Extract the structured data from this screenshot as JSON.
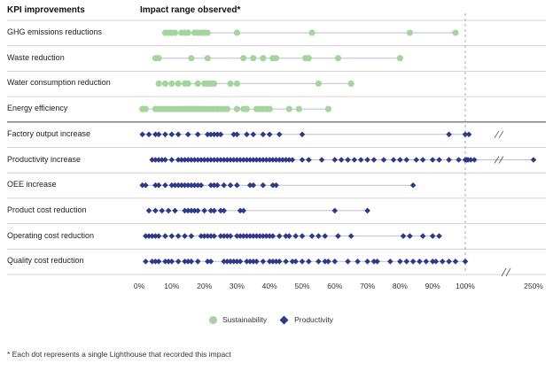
{
  "headers": {
    "kpi": "KPI improvements",
    "impact": "Impact range observed*"
  },
  "footnote": "* Each dot represents a single Lighthouse that recorded this impact",
  "colors": {
    "sustainability": "#a6d49f",
    "productivity": "#2e3a87",
    "line": "#b9bfd6",
    "divider": "#c8c8c8",
    "dashed": "#8c92c4"
  },
  "chart_data": {
    "type": "scatter",
    "title": "Impact range observed*",
    "xlabel": "",
    "ylabel": "",
    "x_ticks": [
      "0%",
      "10%",
      "20%",
      "30%",
      "40%",
      "50%",
      "60%",
      "70%",
      "80%",
      "90%",
      "100%",
      "250%"
    ],
    "xlim": [
      0,
      250
    ],
    "axis_break": "between 100% and 250%",
    "reference_line": 100,
    "legend": [
      "Sustainability",
      "Productivity"
    ],
    "legend_position": "bottom-center",
    "rows": [
      {
        "label": "GHG emissions reductions",
        "series": "Sustainability",
        "values": [
          8,
          9,
          10,
          11,
          13,
          14,
          15,
          17,
          18,
          19,
          20,
          21,
          30,
          53,
          83,
          97
        ]
      },
      {
        "label": "Waste reduction",
        "series": "Sustainability",
        "values": [
          5,
          6,
          16,
          21,
          32,
          35,
          38,
          41,
          42,
          51,
          52,
          61,
          80
        ]
      },
      {
        "label": "Water consumption reduction",
        "series": "Sustainability",
        "values": [
          6,
          8,
          10,
          12,
          14,
          15,
          18,
          20,
          21,
          22,
          23,
          28,
          30,
          55,
          65
        ]
      },
      {
        "label": "Energy efficiency",
        "series": "Sustainability",
        "values": [
          1,
          2,
          5,
          6,
          7,
          8,
          9,
          10,
          11,
          12,
          13,
          14,
          15,
          16,
          17,
          18,
          19,
          20,
          21,
          22,
          23,
          24,
          25,
          26,
          27,
          30,
          32,
          33,
          36,
          37,
          38,
          39,
          40,
          46,
          49,
          58
        ]
      },
      {
        "label": "Factory output increase",
        "series": "Productivity",
        "values": [
          1,
          3,
          5,
          6,
          8,
          10,
          12,
          15,
          18,
          21,
          22,
          23,
          24,
          25,
          29,
          30,
          33,
          35,
          38,
          40,
          43,
          50,
          95,
          100,
          108
        ]
      },
      {
        "label": "Productivity increase",
        "series": "Productivity",
        "values": [
          4,
          5,
          6,
          7,
          8,
          10,
          12,
          13,
          14,
          15,
          16,
          17,
          18,
          19,
          20,
          21,
          22,
          23,
          24,
          25,
          26,
          27,
          28,
          29,
          30,
          31,
          32,
          33,
          34,
          35,
          36,
          37,
          38,
          39,
          40,
          41,
          42,
          43,
          44,
          45,
          46,
          47,
          50,
          52,
          56,
          60,
          62,
          64,
          66,
          68,
          70,
          72,
          75,
          78,
          80,
          82,
          85,
          87,
          90,
          92,
          95,
          98,
          100,
          103,
          106,
          112,
          120,
          250
        ]
      },
      {
        "label": "OEE increase",
        "series": "Productivity",
        "values": [
          1,
          2,
          5,
          6,
          8,
          10,
          11,
          12,
          13,
          14,
          15,
          16,
          17,
          18,
          19,
          22,
          23,
          24,
          26,
          28,
          30,
          34,
          35,
          38,
          41,
          42,
          84
        ]
      },
      {
        "label": "Product cost reduction",
        "series": "Productivity",
        "values": [
          3,
          5,
          7,
          9,
          11,
          14,
          15,
          16,
          17,
          18,
          20,
          22,
          23,
          25,
          26,
          31,
          32,
          60,
          70
        ]
      },
      {
        "label": "Operating cost reduction",
        "series": "Productivity",
        "values": [
          2,
          3,
          4,
          5,
          6,
          8,
          10,
          12,
          14,
          16,
          19,
          20,
          21,
          22,
          23,
          25,
          26,
          27,
          28,
          30,
          31,
          32,
          33,
          34,
          35,
          36,
          37,
          38,
          39,
          40,
          41,
          43,
          45,
          46,
          48,
          50,
          53,
          55,
          57,
          61,
          65,
          81,
          83,
          87,
          90,
          92
        ]
      },
      {
        "label": "Quality cost reduction",
        "series": "Productivity",
        "values": [
          2,
          4,
          5,
          6,
          8,
          9,
          10,
          12,
          14,
          15,
          16,
          18,
          21,
          22,
          26,
          27,
          28,
          29,
          30,
          31,
          33,
          34,
          35,
          36,
          38,
          40,
          41,
          42,
          43,
          45,
          47,
          48,
          50,
          52,
          55,
          57,
          58,
          60,
          64,
          67,
          70,
          72,
          73,
          77,
          80,
          82,
          84,
          86,
          88,
          90,
          91,
          93,
          95,
          97,
          100
        ]
      }
    ]
  }
}
